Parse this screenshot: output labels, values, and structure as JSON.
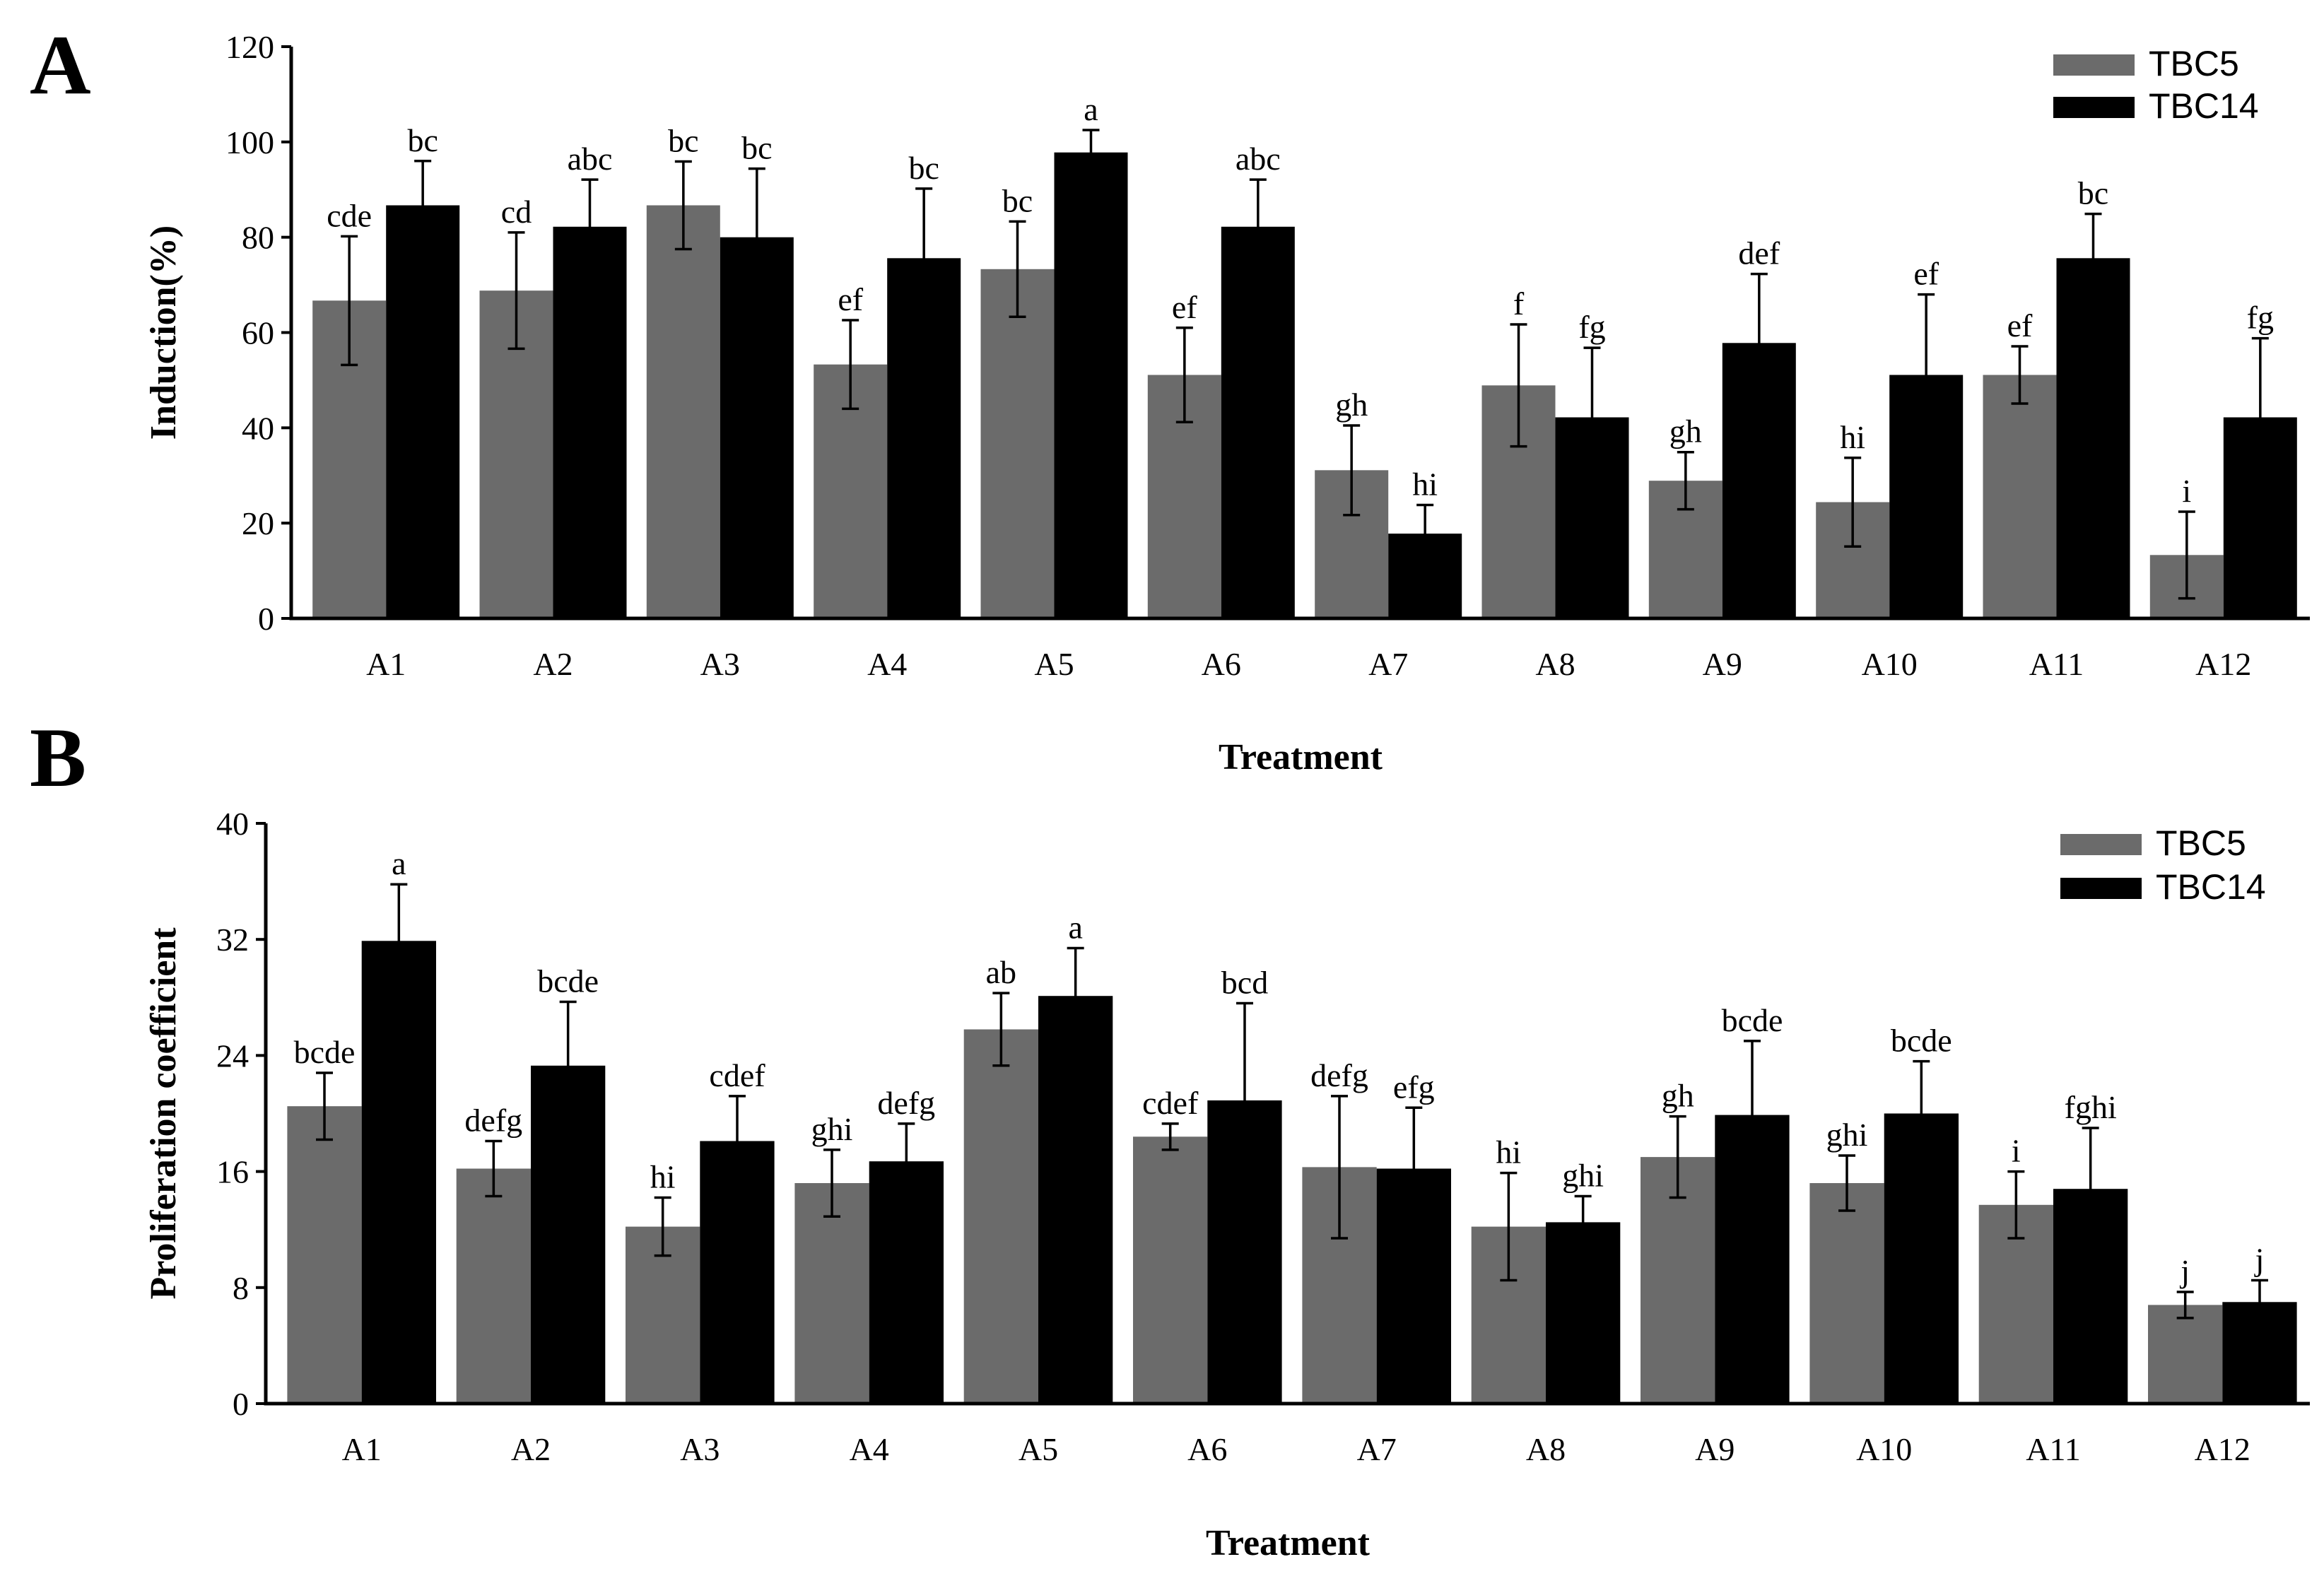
{
  "colors": {
    "TBC5": "#6b6b6b",
    "TBC14": "#000000"
  },
  "chart_data": [
    {
      "panel": "A",
      "type": "bar",
      "xlabel": "Treatment",
      "ylabel": "Induction(%)",
      "ylim": [
        0,
        120
      ],
      "yticks": [
        "0",
        "20",
        "40",
        "60",
        "80",
        "100",
        "120"
      ],
      "categories": [
        "A1",
        "A2",
        "A3",
        "A4",
        "A5",
        "A6",
        "A7",
        "A8",
        "A9",
        "A10",
        "A11",
        "A12"
      ],
      "series": [
        {
          "name": "TBC5",
          "values": [
            66.7,
            68.8,
            86.7,
            53.3,
            73.3,
            51.1,
            31.1,
            48.9,
            28.9,
            24.4,
            51.1,
            13.3
          ],
          "errors": [
            13.5,
            12.2,
            9.2,
            9.3,
            10.0,
            9.9,
            9.4,
            12.8,
            6.0,
            9.3,
            6.0,
            9.1
          ],
          "labels": [
            "cde",
            "cd",
            "bc",
            "ef",
            "bc",
            "ef",
            "gh",
            "f",
            "gh",
            "hi",
            "ef",
            "i"
          ]
        },
        {
          "name": "TBC14",
          "values": [
            86.7,
            82.2,
            80.0,
            75.6,
            97.8,
            82.2,
            17.8,
            42.2,
            57.8,
            51.1,
            75.6,
            42.2
          ],
          "errors": [
            9.3,
            9.9,
            14.4,
            14.6,
            4.7,
            9.9,
            6.0,
            14.6,
            14.5,
            16.9,
            9.3,
            16.6
          ],
          "labels": [
            "bc",
            "abc",
            "bc",
            "bc",
            "a",
            "abc",
            "hi",
            "fg",
            "def",
            "ef",
            "bc",
            "fg"
          ]
        }
      ],
      "legend": "top-right"
    },
    {
      "panel": "B",
      "type": "bar",
      "xlabel": "Treatment",
      "ylabel": "Proliferation coefficient",
      "ylim": [
        0,
        40
      ],
      "yticks": [
        "0",
        "8",
        "16",
        "24",
        "32",
        "40"
      ],
      "categories": [
        "A1",
        "A2",
        "A3",
        "A4",
        "A5",
        "A6",
        "A7",
        "A8",
        "A9",
        "A10",
        "A11",
        "A12"
      ],
      "series": [
        {
          "name": "TBC5",
          "values": [
            20.5,
            16.2,
            12.2,
            15.2,
            25.8,
            18.4,
            16.3,
            12.2,
            17.0,
            15.2,
            13.7,
            6.8
          ],
          "errors": [
            2.3,
            1.9,
            2.0,
            2.3,
            2.5,
            0.9,
            4.9,
            3.7,
            2.8,
            1.9,
            2.3,
            0.9
          ],
          "labels": [
            "bcde",
            "defg",
            "hi",
            "ghi",
            "ab",
            "cdef",
            "defg",
            "hi",
            "gh",
            "ghi",
            "i",
            "j"
          ]
        },
        {
          "name": "TBC14",
          "values": [
            31.9,
            23.3,
            18.1,
            16.7,
            28.1,
            20.9,
            16.2,
            12.5,
            19.9,
            20.0,
            14.8,
            7.0
          ],
          "errors": [
            3.9,
            4.4,
            3.1,
            2.6,
            3.3,
            6.7,
            4.2,
            1.8,
            5.1,
            3.6,
            4.2,
            1.5
          ],
          "labels": [
            "a",
            "bcde",
            "cdef",
            "defg",
            "a",
            "bcd",
            "efg",
            "ghi",
            "bcde",
            "bcde",
            "fghi",
            "j"
          ]
        }
      ],
      "legend": "top-right"
    }
  ]
}
